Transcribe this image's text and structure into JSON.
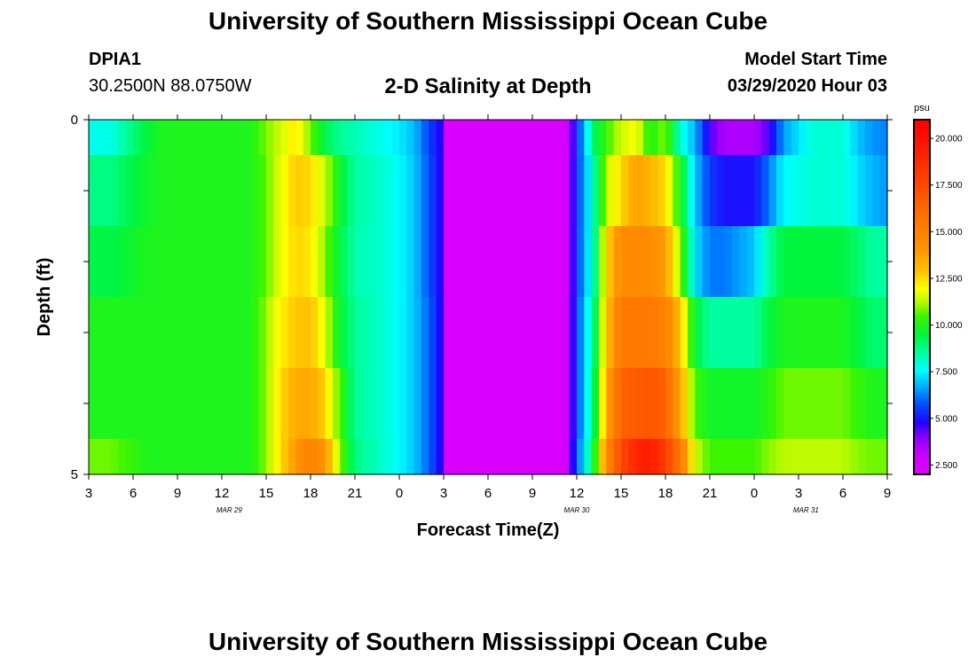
{
  "page": {
    "title_top": "University of Southern Mississippi Ocean Cube",
    "title_bottom": "University of Southern Mississippi Ocean Cube",
    "station_id": "DPIA1",
    "station_coords": "30.2500N 88.0750W",
    "plot_title": "2-D Salinity at Depth",
    "start_label": "Model Start Time",
    "start_time": "03/29/2020 Hour 03"
  },
  "chart_data": {
    "type": "heatmap",
    "title": "2-D Salinity at Depth",
    "xlabel": "Forecast Time(Z)",
    "ylabel": "Depth (ft)",
    "x_tick_labels": [
      "3",
      "6",
      "9",
      "12",
      "15",
      "18",
      "21",
      "0",
      "3",
      "6",
      "9",
      "12",
      "15",
      "18",
      "21",
      "0",
      "3",
      "6",
      "9"
    ],
    "date_labels": [
      {
        "text": "MAR 29",
        "at_hour": 12.5
      },
      {
        "text": "MAR 30",
        "at_hour": 36
      },
      {
        "text": "MAR 31",
        "at_hour": 51.5
      }
    ],
    "x_range_hours": [
      3,
      57
    ],
    "y_tick_labels": [
      "0",
      "5"
    ],
    "ylim": [
      0,
      5
    ],
    "colorbar": {
      "unit": "psu",
      "tick_labels": [
        "20.000",
        "17.500",
        "15.000",
        "12.500",
        "10.000",
        "7.500",
        "5.000",
        "2.500"
      ],
      "range": [
        2.0,
        21.0
      ]
    },
    "depth_rows": [
      {
        "depth_top": 0.0,
        "depth_bottom": 0.5,
        "knots": [
          [
            3,
            7.8
          ],
          [
            4.5,
            7.8
          ],
          [
            7,
            9.6
          ],
          [
            8,
            10
          ],
          [
            14,
            10
          ],
          [
            15,
            10.9
          ],
          [
            16,
            11.5
          ],
          [
            17,
            12.4
          ],
          [
            18,
            10.8
          ],
          [
            19,
            9.3
          ],
          [
            20,
            8.6
          ],
          [
            22,
            8
          ],
          [
            24,
            7.4
          ],
          [
            25,
            6.9
          ],
          [
            26,
            5.6
          ],
          [
            26.8,
            4.8
          ],
          [
            27.2,
            2.2
          ],
          [
            35,
            2.2
          ],
          [
            35.5,
            3.5
          ],
          [
            36,
            5.4
          ],
          [
            36.5,
            6.8
          ],
          [
            37.2,
            9.2
          ],
          [
            38,
            10.4
          ],
          [
            39,
            11.5
          ],
          [
            40,
            12
          ],
          [
            41,
            10
          ],
          [
            42,
            11
          ],
          [
            43,
            8
          ],
          [
            44,
            6.8
          ],
          [
            45,
            4.5
          ],
          [
            46,
            3.5
          ],
          [
            48,
            3.5
          ],
          [
            49,
            4.5
          ],
          [
            50,
            6.6
          ],
          [
            52,
            8
          ],
          [
            54,
            8
          ],
          [
            55,
            7
          ],
          [
            56,
            6.5
          ],
          [
            57,
            6.3
          ]
        ]
      },
      {
        "depth_top": 0.5,
        "depth_bottom": 1.5,
        "knots": [
          [
            3,
            8.8
          ],
          [
            4.5,
            8.8
          ],
          [
            7,
            9.8
          ],
          [
            8,
            10
          ],
          [
            14,
            10
          ],
          [
            15,
            10.7
          ],
          [
            16,
            11.8
          ],
          [
            17,
            12.8
          ],
          [
            18,
            12.5
          ],
          [
            19,
            11.4
          ],
          [
            20,
            9.7
          ],
          [
            21,
            8.5
          ],
          [
            23,
            8
          ],
          [
            24,
            7.6
          ],
          [
            25,
            7
          ],
          [
            26,
            5.8
          ],
          [
            26.8,
            4.8
          ],
          [
            27.2,
            2.2
          ],
          [
            35,
            2.2
          ],
          [
            35.5,
            3.5
          ],
          [
            36,
            5.5
          ],
          [
            36.5,
            6.6
          ],
          [
            37.2,
            8.5
          ],
          [
            38,
            11.4
          ],
          [
            39,
            12.5
          ],
          [
            40,
            13.8
          ],
          [
            41,
            13.2
          ],
          [
            42,
            12.5
          ],
          [
            43,
            10
          ],
          [
            44,
            7
          ],
          [
            45,
            5.5
          ],
          [
            46,
            5
          ],
          [
            48,
            5
          ],
          [
            49,
            6.2
          ],
          [
            50,
            7.6
          ],
          [
            52,
            8
          ],
          [
            54,
            8
          ],
          [
            55,
            7.3
          ],
          [
            56,
            6.8
          ],
          [
            57,
            6.5
          ]
        ]
      },
      {
        "depth_top": 1.5,
        "depth_bottom": 2.5,
        "knots": [
          [
            3,
            9.4
          ],
          [
            4.5,
            9.4
          ],
          [
            7,
            10
          ],
          [
            14,
            10
          ],
          [
            15,
            10.7
          ],
          [
            16,
            11.8
          ],
          [
            17,
            12.6
          ],
          [
            18,
            12.3
          ],
          [
            19,
            10.9
          ],
          [
            20,
            9.4
          ],
          [
            21,
            8.4
          ],
          [
            23,
            8
          ],
          [
            24,
            7.6
          ],
          [
            25,
            7
          ],
          [
            26,
            5.8
          ],
          [
            26.8,
            4.8
          ],
          [
            27.2,
            2.2
          ],
          [
            35,
            2.2
          ],
          [
            35.5,
            3.5
          ],
          [
            36,
            5.6
          ],
          [
            36.5,
            6.6
          ],
          [
            37.2,
            8.5
          ],
          [
            38,
            12.5
          ],
          [
            39,
            14.5
          ],
          [
            41,
            14.5
          ],
          [
            42,
            13.8
          ],
          [
            43,
            11
          ],
          [
            44,
            7.3
          ],
          [
            45,
            6.2
          ],
          [
            46,
            6.2
          ],
          [
            48,
            7
          ],
          [
            49,
            8.5
          ],
          [
            50,
            9.5
          ],
          [
            54,
            9.5
          ],
          [
            55,
            9
          ],
          [
            56,
            8.5
          ],
          [
            57,
            8.5
          ]
        ]
      },
      {
        "depth_top": 2.5,
        "depth_bottom": 3.5,
        "knots": [
          [
            3,
            10
          ],
          [
            4.5,
            10
          ],
          [
            7,
            10
          ],
          [
            14,
            10
          ],
          [
            15,
            11
          ],
          [
            16,
            12.2
          ],
          [
            17,
            12.8
          ],
          [
            18,
            13
          ],
          [
            19,
            11.6
          ],
          [
            20,
            9.6
          ],
          [
            21,
            8.6
          ],
          [
            23,
            8
          ],
          [
            24,
            7.6
          ],
          [
            25,
            7
          ],
          [
            26,
            6
          ],
          [
            26.8,
            4.8
          ],
          [
            27.2,
            2.2
          ],
          [
            35,
            2.2
          ],
          [
            35.5,
            3.5
          ],
          [
            36,
            5.8
          ],
          [
            36.5,
            6.8
          ],
          [
            37.2,
            9
          ],
          [
            38,
            12.8
          ],
          [
            39,
            15.5
          ],
          [
            41,
            15.5
          ],
          [
            42,
            15
          ],
          [
            43,
            13
          ],
          [
            44,
            9.5
          ],
          [
            45,
            8.5
          ],
          [
            48,
            8.5
          ],
          [
            49,
            9.5
          ],
          [
            50,
            10
          ],
          [
            54,
            10
          ],
          [
            55,
            9.5
          ],
          [
            56,
            9
          ],
          [
            57,
            9
          ]
        ]
      },
      {
        "depth_top": 3.5,
        "depth_bottom": 4.5,
        "knots": [
          [
            3,
            10
          ],
          [
            4.5,
            10
          ],
          [
            7,
            10
          ],
          [
            14,
            10
          ],
          [
            15,
            11
          ],
          [
            16,
            12.5
          ],
          [
            17,
            13.5
          ],
          [
            18,
            13.6
          ],
          [
            19,
            12.6
          ],
          [
            20,
            10.5
          ],
          [
            21,
            8.6
          ],
          [
            23,
            8
          ],
          [
            24,
            7.6
          ],
          [
            25,
            7
          ],
          [
            26,
            6
          ],
          [
            26.8,
            4.8
          ],
          [
            27.2,
            2.2
          ],
          [
            35,
            2.2
          ],
          [
            35.5,
            3.5
          ],
          [
            36,
            5.8
          ],
          [
            36.5,
            6.8
          ],
          [
            37.2,
            9.3
          ],
          [
            38,
            13.5
          ],
          [
            39,
            16.5
          ],
          [
            41,
            17
          ],
          [
            42,
            16.5
          ],
          [
            43,
            13.5
          ],
          [
            44,
            10.5
          ],
          [
            45,
            9.8
          ],
          [
            48,
            9.8
          ],
          [
            49,
            10.2
          ],
          [
            50,
            10.8
          ],
          [
            54,
            10.8
          ],
          [
            55,
            10.4
          ],
          [
            56,
            10
          ],
          [
            57,
            10
          ]
        ]
      },
      {
        "depth_top": 4.5,
        "depth_bottom": 5.0,
        "knots": [
          [
            3,
            10.8
          ],
          [
            4.5,
            10.8
          ],
          [
            7,
            10
          ],
          [
            14,
            10
          ],
          [
            15,
            11
          ],
          [
            16,
            12.5
          ],
          [
            17,
            14
          ],
          [
            18,
            15
          ],
          [
            19,
            14
          ],
          [
            20,
            11
          ],
          [
            21,
            8.8
          ],
          [
            23,
            8
          ],
          [
            24,
            7.6
          ],
          [
            25,
            7
          ],
          [
            26,
            6
          ],
          [
            26.8,
            4.8
          ],
          [
            27.2,
            2.2
          ],
          [
            35,
            2.2
          ],
          [
            35.5,
            3.5
          ],
          [
            36,
            6
          ],
          [
            36.5,
            7.2
          ],
          [
            37.2,
            10
          ],
          [
            38,
            14.5
          ],
          [
            39,
            17.5
          ],
          [
            40,
            19
          ],
          [
            41,
            19.5
          ],
          [
            42,
            18
          ],
          [
            43,
            15.5
          ],
          [
            44,
            11.5
          ],
          [
            45,
            10.5
          ],
          [
            48,
            10.5
          ],
          [
            49,
            11
          ],
          [
            50,
            11.3
          ],
          [
            54,
            11.3
          ],
          [
            55,
            11
          ],
          [
            56,
            10.8
          ],
          [
            57,
            10.8
          ]
        ]
      }
    ]
  }
}
